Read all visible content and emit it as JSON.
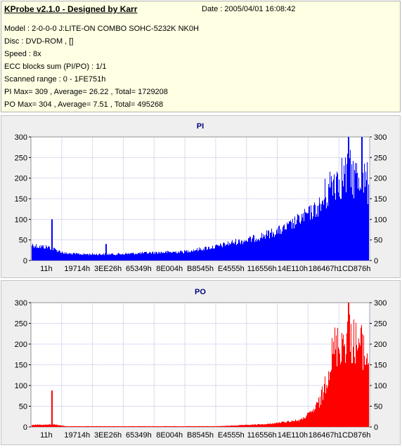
{
  "header": {
    "title": "KProbe v2.1.0 - Designed by Karr",
    "date": "Date : 2005/04/01 16:08:42",
    "lines": [
      "Model : 2-0-0-0 J:LITE-ON COMBO SOHC-5232K NK0H",
      "Disc : DVD-ROM ,  []",
      "Speed : 8x",
      "ECC blocks sum (PI/PO) : 1/1",
      "Scanned range : 0 - 1FE751h",
      "PI Max= 309 , Average= 26.22 , Total= 1729208",
      "PO Max= 304 , Average= 7.51 , Total= 495268"
    ]
  },
  "colors": {
    "panel_bg": "#ffffe3",
    "chart_bg": "#efefef",
    "plot_bg": "#ffffff",
    "grid": "#b8b8e8",
    "pi": "#0000ff",
    "po": "#ff0000",
    "title": "#000080"
  },
  "chart_data": [
    {
      "type": "bar",
      "title": "PI",
      "color": "#0000ff",
      "ylim": [
        0,
        300
      ],
      "yticks": [
        0,
        50,
        100,
        150,
        200,
        250,
        300
      ],
      "xtick_labels": [
        "11h",
        "19714h",
        "3EE26h",
        "65349h",
        "8E004h",
        "B8545h",
        "E4555h",
        "116556h",
        "14E110h",
        "186467h",
        "1CD876h"
      ],
      "grid": true,
      "envelope": [
        [
          0,
          45
        ],
        [
          2,
          40
        ],
        [
          5,
          38
        ],
        [
          10,
          20
        ],
        [
          15,
          18
        ],
        [
          25,
          18
        ],
        [
          35,
          22
        ],
        [
          45,
          25
        ],
        [
          55,
          40
        ],
        [
          60,
          52
        ],
        [
          65,
          60
        ],
        [
          70,
          75
        ],
        [
          75,
          90
        ],
        [
          80,
          120
        ],
        [
          85,
          150
        ],
        [
          87,
          200
        ],
        [
          90,
          260
        ],
        [
          95,
          270
        ],
        [
          98,
          250
        ],
        [
          100,
          240
        ]
      ],
      "spikes": [
        [
          6,
          100
        ],
        [
          22,
          40
        ],
        [
          94,
          309
        ],
        [
          98,
          305
        ]
      ]
    },
    {
      "type": "bar",
      "title": "PO",
      "color": "#ff0000",
      "ylim": [
        0,
        300
      ],
      "yticks": [
        0,
        50,
        100,
        150,
        200,
        250,
        300
      ],
      "xtick_labels": [
        "11h",
        "19714h",
        "3EE26h",
        "65349h",
        "8E004h",
        "B8545h",
        "E4555h",
        "116556h",
        "14E110h",
        "186467h",
        "1CD876h"
      ],
      "grid": true,
      "envelope": [
        [
          0,
          6
        ],
        [
          5,
          6
        ],
        [
          6,
          8
        ],
        [
          10,
          2
        ],
        [
          55,
          2
        ],
        [
          70,
          8
        ],
        [
          80,
          20
        ],
        [
          84,
          50
        ],
        [
          86,
          90
        ],
        [
          88,
          180
        ],
        [
          90,
          250
        ],
        [
          94,
          280
        ],
        [
          98,
          250
        ],
        [
          100,
          220
        ]
      ],
      "spikes": [
        [
          6,
          88
        ],
        [
          94,
          304
        ],
        [
          99,
          150
        ]
      ]
    }
  ]
}
